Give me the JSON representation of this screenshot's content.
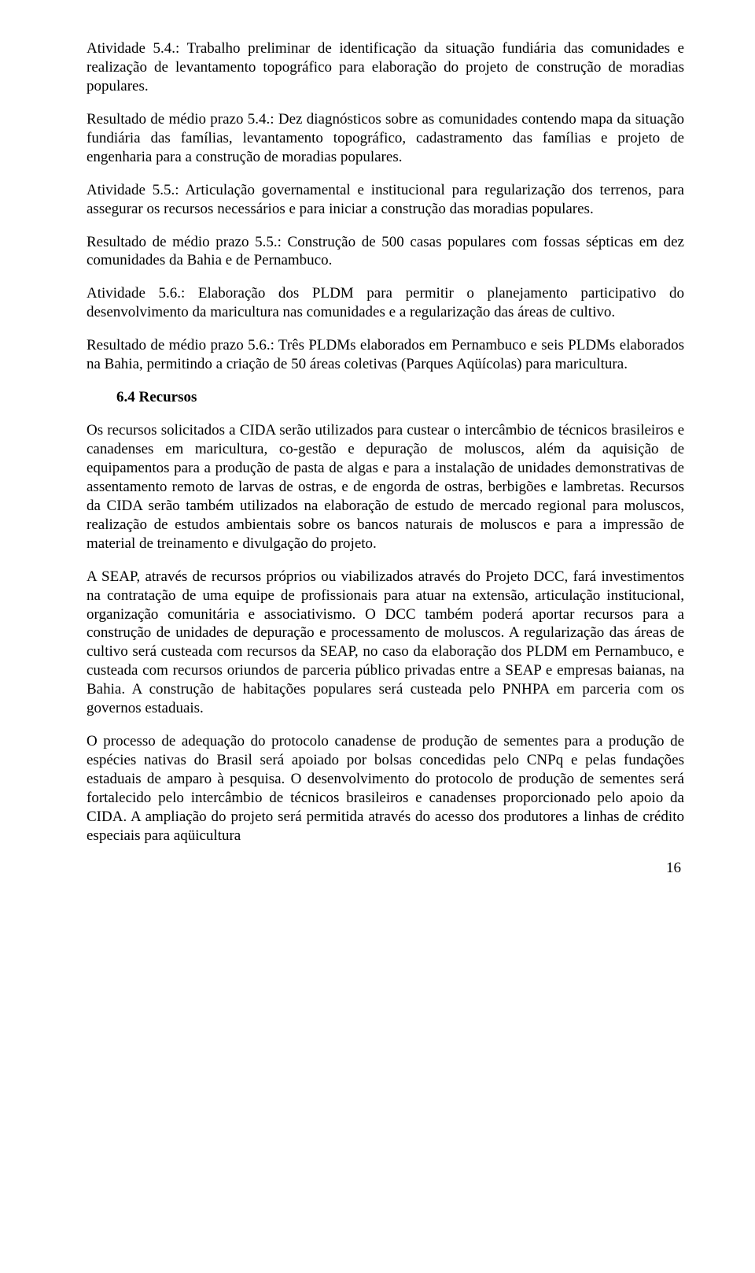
{
  "para1": "Atividade 5.4.: Trabalho preliminar de identificação da situação fundiária das comunidades e realização de levantamento topográfico para elaboração do projeto de construção de moradias populares.",
  "para2": "Resultado de médio prazo 5.4.: Dez diagnósticos sobre as comunidades contendo mapa da situação fundiária das famílias, levantamento topográfico, cadastramento das famílias e projeto de engenharia para a construção de moradias populares.",
  "para3": "Atividade 5.5.: Articulação governamental e institucional para regularização dos terrenos, para assegurar os recursos necessários e para iniciar a construção das moradias populares.",
  "para4": "Resultado de médio prazo 5.5.: Construção de 500 casas populares com fossas sépticas em dez comunidades da Bahia e de Pernambuco.",
  "para5": "Atividade 5.6.: Elaboração dos PLDM para permitir o planejamento participativo do desenvolvimento da maricultura nas comunidades e a regularização das áreas de cultivo.",
  "para6": "Resultado de médio prazo 5.6.: Três PLDMs elaborados em Pernambuco e seis PLDMs elaborados na Bahia, permitindo a criação de  50 áreas coletivas (Parques Aqüícolas) para maricultura.",
  "section_head": "6.4 Recursos",
  "para7": "Os recursos solicitados a CIDA serão utilizados para custear o intercâmbio de técnicos brasileiros e canadenses em maricultura, co-gestão e depuração de moluscos, além da aquisição de equipamentos para a produção de pasta de algas e para a instalação de unidades demonstrativas de assentamento remoto de larvas de ostras, e de engorda de ostras, berbigões e lambretas.  Recursos da CIDA serão também utilizados na elaboração de estudo de mercado regional para moluscos, realização de estudos ambientais sobre os bancos naturais de moluscos e para a impressão de material de treinamento e divulgação do projeto.",
  "para8": "A SEAP, através de recursos próprios ou viabilizados através do Projeto DCC, fará investimentos na contratação de uma equipe de profissionais para atuar na extensão, articulação institucional, organização comunitária e associativismo. O DCC também poderá aportar recursos para a construção de unidades de depuração e processamento de moluscos. A regularização das áreas de cultivo será custeada com recursos da SEAP, no caso da elaboração dos PLDM em Pernambuco, e custeada com recursos oriundos de parceria público privadas entre a SEAP e empresas baianas, na Bahia. A construção de habitações populares será custeada pelo PNHPA em parceria com os governos estaduais.",
  "para9": "O processo de adequação do protocolo canadense de produção de sementes para a produção de espécies nativas do Brasil será apoiado por bolsas concedidas pelo CNPq e pelas fundações estaduais de amparo à pesquisa. O desenvolvimento do protocolo de produção de sementes será fortalecido pelo intercâmbio de técnicos brasileiros e canadenses proporcionado pelo apoio da CIDA. A ampliação do projeto será permitida através do acesso dos produtores a linhas de crédito especiais para aqüicultura",
  "page_number": "16"
}
